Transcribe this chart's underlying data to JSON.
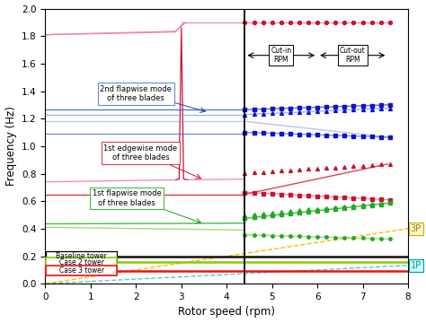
{
  "xlim": [
    0,
    8
  ],
  "ylim": [
    0.0,
    2.0
  ],
  "xlabel": "Rotor speed (rpm)",
  "ylabel": "Frequency (Hz)",
  "cut_in_rpm": 4.4,
  "cut_out_rpm": 7.55,
  "tower_baseline_freq": 0.195,
  "tower_case2_freq": 0.155,
  "tower_case3_freq": 0.095,
  "color_pink": "#ee88aa",
  "color_blue_dark": "#1111cc",
  "color_blue_mid": "#4466dd",
  "color_blue_light": "#7799ee",
  "color_red_dark": "#cc1133",
  "color_red_mid": "#dd4455",
  "color_green_dark": "#22aa22",
  "color_green_mid": "#44bb44",
  "color_green_light": "#77cc44",
  "color_1P": "#55cccc",
  "color_3P": "#ffbb00",
  "color_tower_black": "#111111",
  "color_tower_green": "#88cc00",
  "color_tower_red": "#ee1111"
}
